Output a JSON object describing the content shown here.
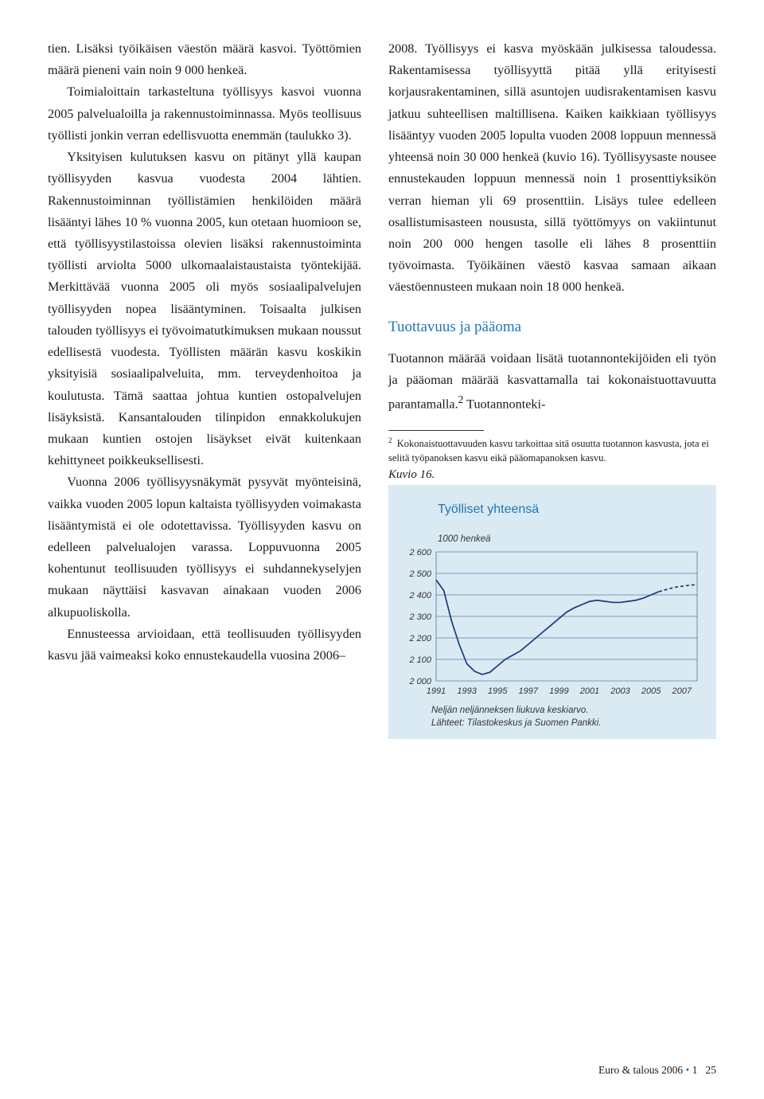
{
  "left_column": {
    "p1": "tien. Lisäksi työikäisen väestön määrä kasvoi. Työttömien määrä pieneni vain noin 9 000 henkeä.",
    "p2": "Toimialoittain tarkasteltuna työllisyys kasvoi vuonna 2005 palvelualoilla ja rakennustoiminnassa. Myös teollisuus työllisti jonkin verran edellisvuotta enemmän (taulukko 3).",
    "p3": "Yksityisen kulutuksen kasvu on pitänyt yllä kaupan työllisyyden kasvua vuodesta 2004 lähtien. Rakennustoiminnan työllistämien henkilöiden määrä lisääntyi lähes 10 % vuonna 2005, kun otetaan huomioon se, että työllisyystilastoissa olevien lisäksi rakennustoiminta työllisti arviolta 5000 ulkomaalaistaustaista työntekijää. Merkittävää vuonna 2005 oli myös sosiaalipalvelujen työllisyyden nopea lisääntyminen. Toisaalta julkisen talouden työllisyys ei työvoimatutkimuksen mukaan noussut edellisestä vuodesta. Työllisten määrän kasvu koskikin yksityisiä sosiaalipalveluita, mm. terveydenhoitoa ja koulutusta. Tämä saattaa johtua kuntien ostopalvelujen lisäyksistä. Kansantalouden tilinpidon ennakkolukujen mukaan kuntien ostojen lisäykset eivät kuitenkaan kehittyneet poikkeuksellisesti.",
    "p4": "Vuonna 2006 työllisyysnäkymät pysyvät myönteisinä, vaikka vuoden 2005 lopun kaltaista työllisyyden voimakasta lisääntymistä ei ole odotettavissa. Työllisyyden kasvu on edelleen palvelualojen varassa. Loppuvuonna 2005 kohentunut teollisuuden työllisyys ei suhdannekyselyjen mukaan näyttäisi kasvavan ainakaan vuoden 2006 alkupuoliskolla.",
    "p5": "Ennusteessa arvioidaan, että teollisuuden työllisyyden kasvu jää vaimeaksi koko ennustekaudella vuosina 2006–"
  },
  "right_column": {
    "p1": "2008. Työllisyys ei kasva myöskään julkisessa taloudessa. Rakentamisessa työllisyyttä pitää yllä erityisesti korjausrakentaminen, sillä asuntojen uudisrakentamisen kasvu jatkuu suhteellisen maltillisena. Kaiken kaikkiaan työllisyys lisääntyy vuoden 2005 lopulta vuoden 2008 loppuun mennessä yhteensä noin 30 000 henkeä (kuvio 16). Työllisyysaste nousee ennustekauden loppuun mennessä noin 1 prosenttiyksikön verran hieman yli 69 prosenttiin. Lisäys tulee edelleen osallistumisasteen noususta, sillä työttömyys on vakiintunut noin 200 000 hengen tasolle eli lähes 8 prosenttiin työvoimasta. Työikäinen väestö kasvaa samaan aikaan väestöennusteen mukaan noin 18 000 henkeä.",
    "heading": "Tuottavuus ja pääoma",
    "p2_a": "Tuotannon määrää voidaan lisätä tuotannontekijöiden eli työn ja pääoman määrää kasvattamalla tai kokonaistuottavuutta parantamalla.",
    "p2_b": " Tuotannonteki-",
    "footnote": "Kokonaistuottavuuden kasvu tarkoittaa sitä osuutta tuotannon kasvusta, jota ei selitä työpanoksen kasvu eikä pääomapanoksen kasvu.",
    "fig_label": "Kuvio 16."
  },
  "chart": {
    "title": "Työlliset yhteensä",
    "ylabel": "1000 henkeä",
    "ylim": [
      2000,
      2600
    ],
    "ytick_step": 100,
    "yticks": [
      "2 600",
      "2 500",
      "2 400",
      "2 300",
      "2 200",
      "2 100",
      "2 000"
    ],
    "xlim": [
      1991,
      2008
    ],
    "xticks": [
      1991,
      1993,
      1995,
      1997,
      1999,
      2001,
      2003,
      2005,
      2007
    ],
    "line_color": "#1a3a7a",
    "forecast_color": "#1a3a7a",
    "grid_color": "#234a8a",
    "bg_color": "#d9eaf3",
    "series_solid": [
      [
        1991,
        2470
      ],
      [
        1991.5,
        2420
      ],
      [
        1992,
        2280
      ],
      [
        1992.5,
        2170
      ],
      [
        1993,
        2080
      ],
      [
        1993.5,
        2045
      ],
      [
        1994,
        2030
      ],
      [
        1994.5,
        2040
      ],
      [
        1995,
        2070
      ],
      [
        1995.5,
        2100
      ],
      [
        1996,
        2120
      ],
      [
        1996.5,
        2140
      ],
      [
        1997,
        2170
      ],
      [
        1997.5,
        2200
      ],
      [
        1998,
        2230
      ],
      [
        1998.5,
        2260
      ],
      [
        1999,
        2290
      ],
      [
        1999.5,
        2320
      ],
      [
        2000,
        2340
      ],
      [
        2000.5,
        2355
      ],
      [
        2001,
        2370
      ],
      [
        2001.5,
        2375
      ],
      [
        2002,
        2370
      ],
      [
        2002.5,
        2365
      ],
      [
        2003,
        2365
      ],
      [
        2003.5,
        2370
      ],
      [
        2004,
        2375
      ],
      [
        2004.5,
        2385
      ],
      [
        2005,
        2400
      ],
      [
        2005.5,
        2415
      ]
    ],
    "series_dashed": [
      [
        2005.5,
        2415
      ],
      [
        2006,
        2425
      ],
      [
        2006.5,
        2435
      ],
      [
        2007,
        2440
      ],
      [
        2007.5,
        2445
      ],
      [
        2008,
        2448
      ]
    ],
    "footer1": "Neljän neljänneksen liukuva keskiarvo.",
    "footer2": "Lähteet: Tilastokeskus ja Suomen Pankki."
  },
  "footer": {
    "journal": "Euro & talous 2006",
    "issue": "1",
    "page": "25"
  }
}
